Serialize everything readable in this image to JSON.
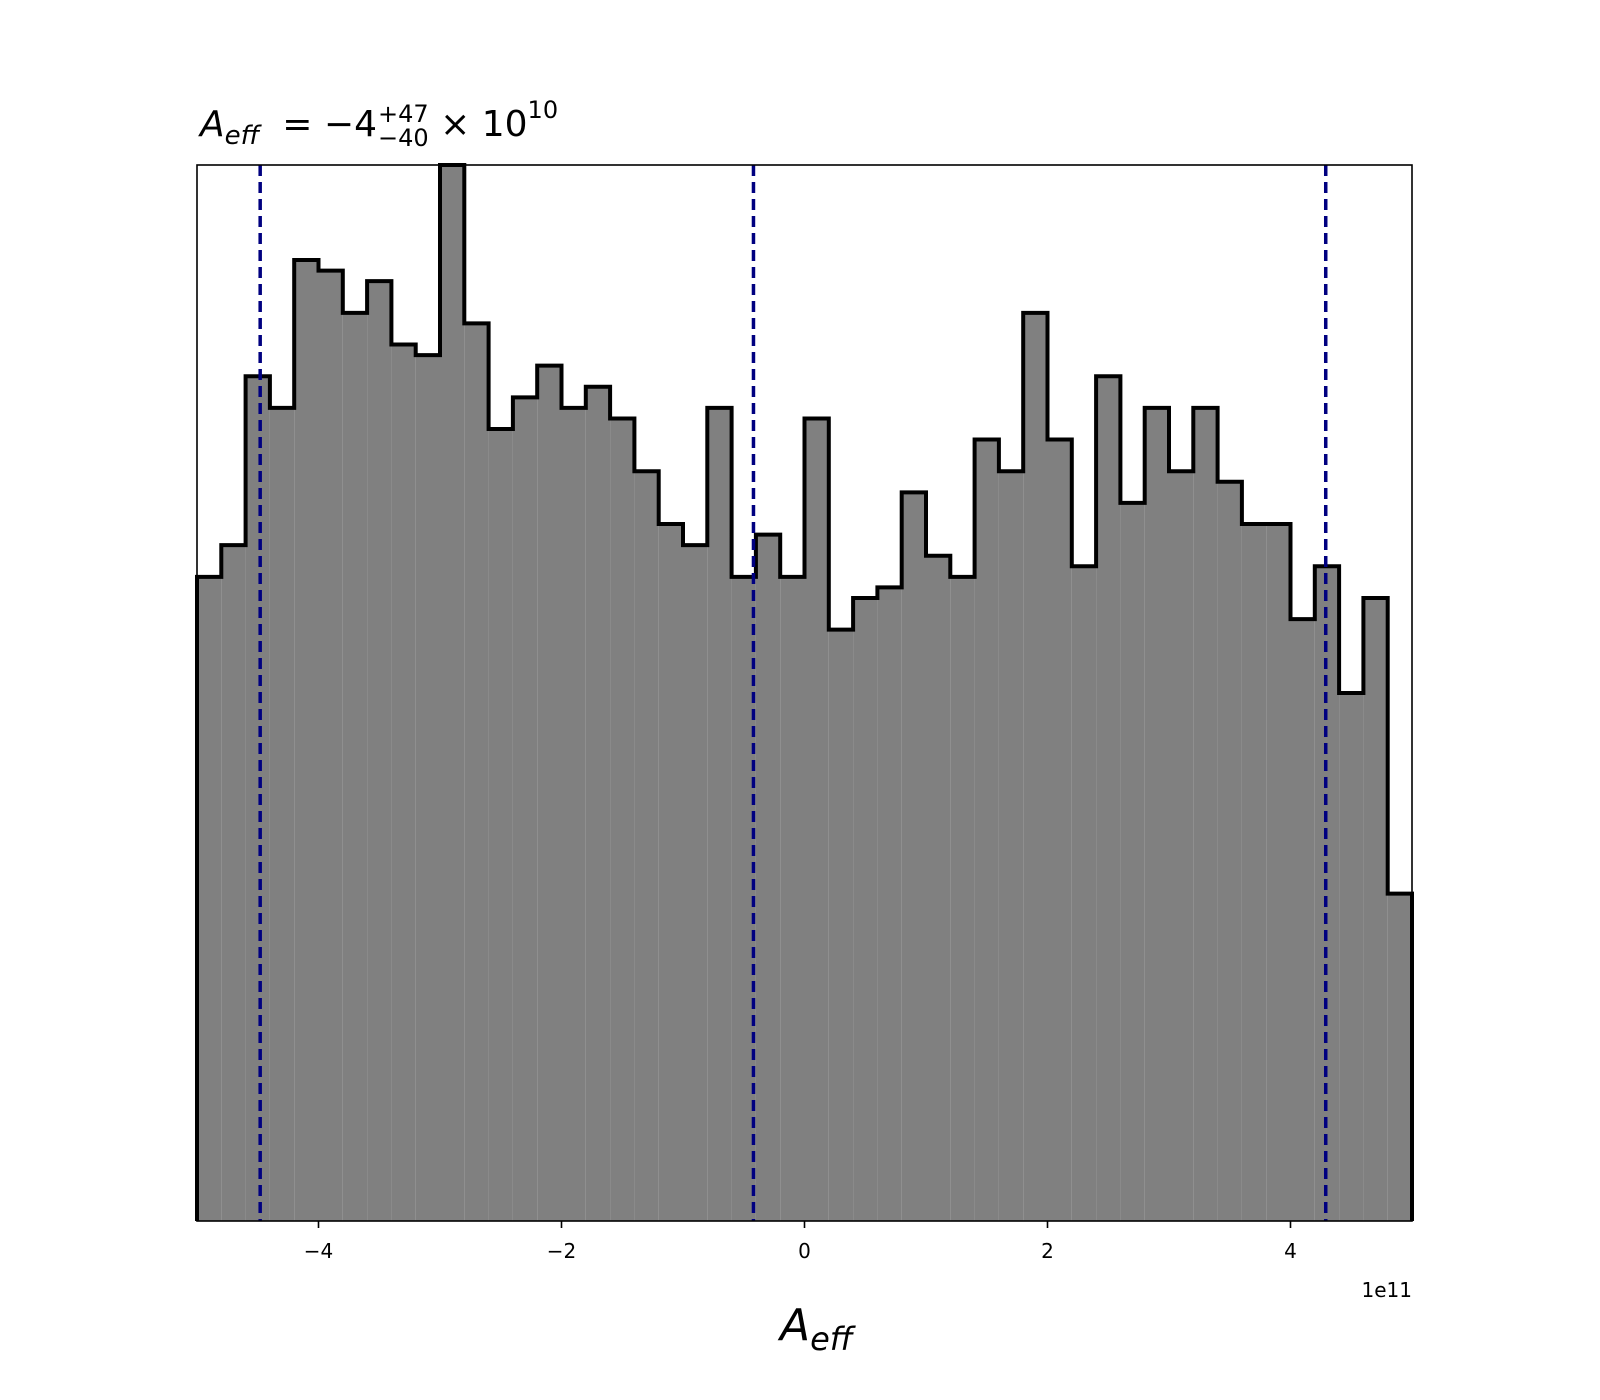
{
  "chart_data": {
    "type": "histogram",
    "title": {
      "symbol": "A",
      "symbol_subscript": "eff",
      "equals": "=",
      "value": "−4",
      "upper": "+47",
      "lower": "−40",
      "times": "×",
      "base": "10",
      "exponent": "10"
    },
    "xlabel": {
      "symbol": "A",
      "subscript": "eff"
    },
    "x_offset_label": "1e11",
    "xlim": [
      -5,
      5
    ],
    "ylim": [
      0,
      1
    ],
    "x_ticks": [
      {
        "value": -4,
        "label": "−4"
      },
      {
        "value": -2,
        "label": "−2"
      },
      {
        "value": 0,
        "label": "0"
      },
      {
        "value": 2,
        "label": "2"
      },
      {
        "value": 4,
        "label": "4"
      }
    ],
    "y_ticks_visible": false,
    "bin_edges": [
      -5.0,
      -4.8,
      -4.6,
      -4.4,
      -4.2,
      -4.0,
      -3.8,
      -3.6,
      -3.4,
      -3.2,
      -3.0,
      -2.8,
      -2.6,
      -2.4,
      -2.2,
      -2.0,
      -1.8,
      -1.6,
      -1.4,
      -1.2,
      -1.0,
      -0.8,
      -0.6,
      -0.4,
      -0.2,
      0.0,
      0.2,
      0.4,
      0.6,
      0.8,
      1.0,
      1.2,
      1.4,
      1.6,
      1.8,
      2.0,
      2.2,
      2.4,
      2.6,
      2.8,
      3.0,
      3.2,
      3.4,
      3.6,
      3.8,
      4.0,
      4.2,
      4.4,
      4.6,
      4.8,
      5.0
    ],
    "counts": [
      0.61,
      0.64,
      0.8,
      0.77,
      0.91,
      0.9,
      0.86,
      0.89,
      0.83,
      0.82,
      1.0,
      0.85,
      0.75,
      0.78,
      0.81,
      0.77,
      0.79,
      0.76,
      0.71,
      0.66,
      0.64,
      0.77,
      0.61,
      0.65,
      0.61,
      0.76,
      0.56,
      0.59,
      0.6,
      0.69,
      0.63,
      0.61,
      0.74,
      0.71,
      0.86,
      0.74,
      0.62,
      0.8,
      0.68,
      0.77,
      0.71,
      0.77,
      0.7,
      0.66,
      0.66,
      0.57,
      0.62,
      0.5,
      0.59,
      0.31
    ],
    "vlines": [
      -4.48,
      -0.42,
      4.29
    ],
    "fill_color": "#808080",
    "edge_color": "#000000",
    "vline_color": "#000080",
    "vline_style": "dashed",
    "grid": false
  }
}
